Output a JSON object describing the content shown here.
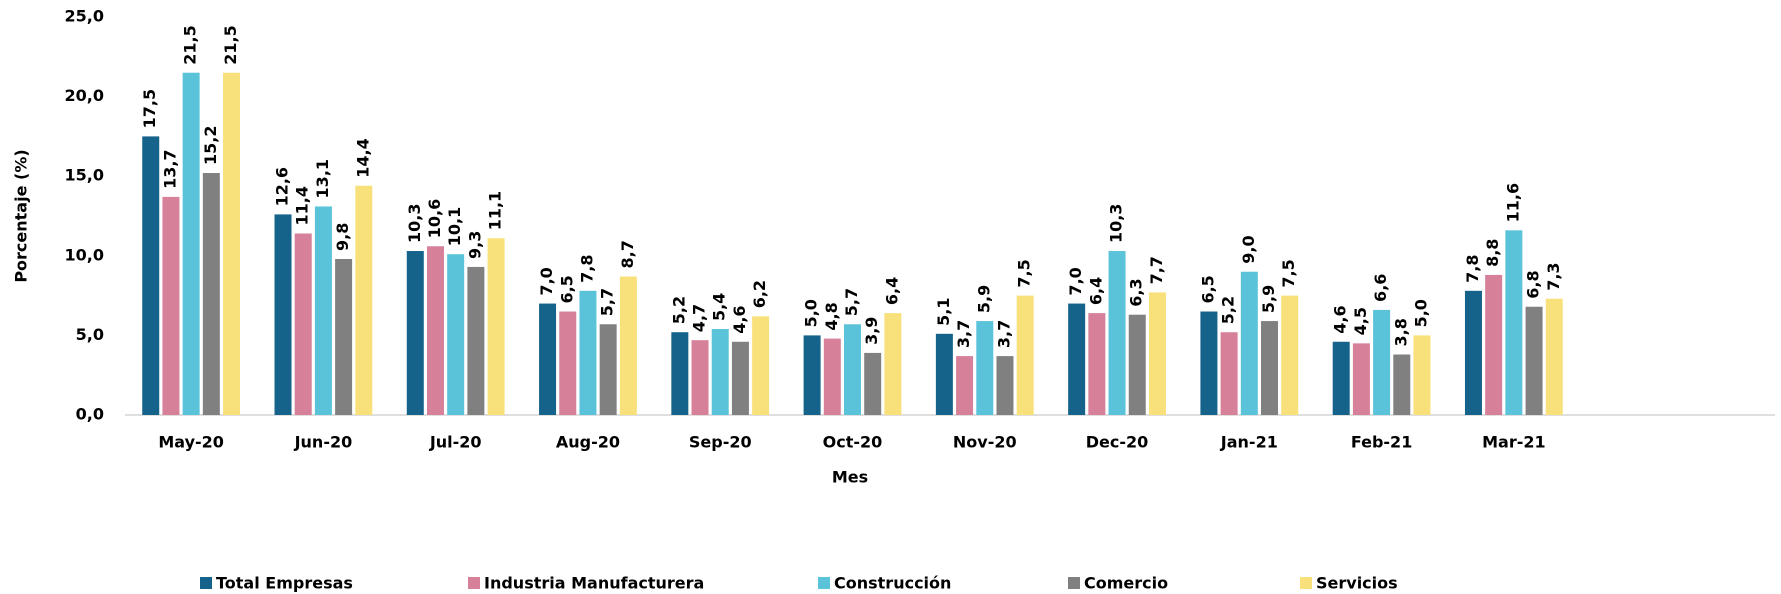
{
  "chart_data": {
    "type": "bar",
    "x_label": "Mes",
    "y_label": "Porcentaje (%)",
    "categories": [
      "May-20",
      "Jun-20",
      "Jul-20",
      "Aug-20",
      "Sep-20",
      "Oct-20",
      "Nov-20",
      "Dec-20",
      "Jan-21",
      "Feb-21",
      "Mar-21"
    ],
    "series": [
      {
        "name": "Total Empresas",
        "color": "#15628b",
        "values": [
          17.5,
          12.6,
          10.3,
          7.0,
          5.2,
          5.0,
          5.1,
          7.0,
          6.5,
          4.6,
          7.8
        ],
        "value_labels": [
          "17,5",
          "12,6",
          "10,3",
          "7,0",
          "5,2",
          "5,0",
          "5,1",
          "7,0",
          "6,5",
          "4,6",
          "7,8"
        ]
      },
      {
        "name": "Industria Manufacturera",
        "color": "#d6809a",
        "values": [
          13.7,
          11.4,
          10.6,
          6.5,
          4.7,
          4.8,
          3.7,
          6.4,
          5.2,
          4.5,
          8.8
        ],
        "value_labels": [
          "13,7",
          "11,4",
          "10,6",
          "6,5",
          "4,7",
          "4,8",
          "3,7",
          "6,4",
          "5,2",
          "4,5",
          "8,8"
        ]
      },
      {
        "name": "Construcción",
        "color": "#5bc3d9",
        "values": [
          21.5,
          13.1,
          10.1,
          7.8,
          5.4,
          5.7,
          5.9,
          10.3,
          9.0,
          6.6,
          11.6
        ],
        "value_labels": [
          "21,5",
          "13,1",
          "10,1",
          "7,8",
          "5,4",
          "5,7",
          "5,9",
          "10,3",
          "9,0",
          "6,6",
          "11,6"
        ]
      },
      {
        "name": "Comercio",
        "color": "#808080",
        "values": [
          15.2,
          9.8,
          9.3,
          5.7,
          4.6,
          3.9,
          3.7,
          6.3,
          5.9,
          3.8,
          6.8
        ],
        "value_labels": [
          "15,2",
          "9,8",
          "9,3",
          "5,7",
          "4,6",
          "3,9",
          "3,7",
          "6,3",
          "5,9",
          "3,8",
          "6,8"
        ]
      },
      {
        "name": "Servicios",
        "color": "#f8e17b",
        "values": [
          21.5,
          14.4,
          11.1,
          8.7,
          6.2,
          6.4,
          7.5,
          7.7,
          7.5,
          5.0,
          7.3
        ],
        "value_labels": [
          "21,5",
          "14,4",
          "11,1",
          "8,7",
          "6,2",
          "6,4",
          "7,5",
          "7,7",
          "7,5",
          "5,0",
          "7,3"
        ]
      }
    ],
    "ylim": [
      0,
      25
    ],
    "yticks": [
      {
        "value": 0,
        "label": "0,0"
      },
      {
        "value": 5,
        "label": "5,0"
      },
      {
        "value": 10,
        "label": "10,0"
      },
      {
        "value": 15,
        "label": "15,0"
      },
      {
        "value": 20,
        "label": "20,0"
      },
      {
        "value": 25,
        "label": "25,0"
      }
    ],
    "grid": false,
    "legend": "bottom"
  }
}
